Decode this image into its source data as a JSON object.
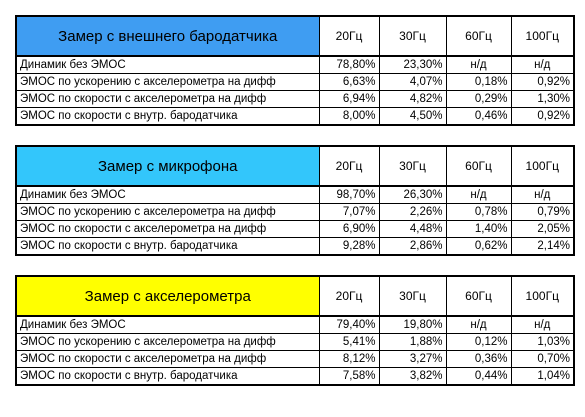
{
  "tables": [
    {
      "title": "Замер с внешнего бародатчика",
      "columns": [
        "20Гц",
        "30Гц",
        "60Гц",
        "100Гц"
      ],
      "rows": [
        [
          "Динамик без ЭМОС",
          "78,80%",
          "23,30%",
          "н/д",
          "н/д"
        ],
        [
          "ЭМОС по ускорению с акселерометра на дифф",
          "6,63%",
          "4,07%",
          "0,18%",
          "0,92%"
        ],
        [
          "ЭМОС по скорости с акселерометра на дифф",
          "6,94%",
          "4,82%",
          "0,29%",
          "1,30%"
        ],
        [
          "ЭМОС по скорости с внутр. бародатчика",
          "8,00%",
          "4,50%",
          "0,46%",
          "0,92%"
        ]
      ]
    },
    {
      "title": "Замер с микрофона",
      "columns": [
        "20Гц",
        "30Гц",
        "60Гц",
        "100Гц"
      ],
      "rows": [
        [
          "Динамик без ЭМОС",
          "98,70%",
          "26,30%",
          "н/д",
          "н/д"
        ],
        [
          "ЭМОС по ускорению с акселерометра на дифф",
          "7,07%",
          "2,26%",
          "0,78%",
          "0,79%"
        ],
        [
          "ЭМОС по скорости с акселерометра на дифф",
          "6,90%",
          "4,48%",
          "1,40%",
          "2,05%"
        ],
        [
          "ЭМОС по скорости с внутр. бародатчика",
          "9,28%",
          "2,86%",
          "0,62%",
          "2,14%"
        ]
      ]
    },
    {
      "title": "Замер с акселерометра",
      "columns": [
        "20Гц",
        "30Гц",
        "60Гц",
        "100Гц"
      ],
      "rows": [
        [
          "Динамик без ЭМОС",
          "79,40%",
          "19,80%",
          "н/д",
          "н/д"
        ],
        [
          "ЭМОС по ускорению с акселерометра на дифф",
          "5,41%",
          "1,88%",
          "0,12%",
          "1,03%"
        ],
        [
          "ЭМОС по скорости с акселерометра на дифф",
          "8,12%",
          "3,27%",
          "0,36%",
          "0,70%"
        ],
        [
          "ЭМОС по скорости с внутр. бародатчика",
          "7,58%",
          "3,82%",
          "0,44%",
          "1,04%"
        ]
      ]
    }
  ]
}
